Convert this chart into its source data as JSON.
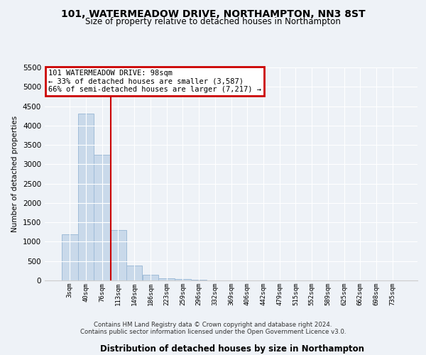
{
  "title1": "101, WATERMEADOW DRIVE, NORTHAMPTON, NN3 8ST",
  "title2": "Size of property relative to detached houses in Northampton",
  "xlabel": "Distribution of detached houses by size in Northampton",
  "ylabel": "Number of detached properties",
  "bar_labels": [
    "3sqm",
    "40sqm",
    "76sqm",
    "113sqm",
    "149sqm",
    "186sqm",
    "223sqm",
    "259sqm",
    "296sqm",
    "332sqm",
    "369sqm",
    "406sqm",
    "442sqm",
    "479sqm",
    "515sqm",
    "552sqm",
    "589sqm",
    "625sqm",
    "662sqm",
    "698sqm",
    "735sqm"
  ],
  "bar_values": [
    1200,
    4300,
    3250,
    1300,
    390,
    140,
    60,
    35,
    10,
    0,
    0,
    0,
    0,
    0,
    0,
    0,
    0,
    0,
    0,
    0,
    0
  ],
  "bar_color": "#c9d9ea",
  "bar_edge_color": "#a0bcd8",
  "ylim": [
    0,
    5500
  ],
  "yticks": [
    0,
    500,
    1000,
    1500,
    2000,
    2500,
    3000,
    3500,
    4000,
    4500,
    5000,
    5500
  ],
  "red_line_x": 2.55,
  "annotation_text": "101 WATERMEADOW DRIVE: 98sqm\n← 33% of detached houses are smaller (3,587)\n66% of semi-detached houses are larger (7,217) →",
  "annotation_box_color": "#ffffff",
  "annotation_edge_color": "#cc0000",
  "footer": "Contains HM Land Registry data © Crown copyright and database right 2024.\nContains public sector information licensed under the Open Government Licence v3.0.",
  "background_color": "#eef2f7",
  "plot_bg_color": "#eef2f7",
  "grid_color": "#ffffff",
  "title1_fontsize": 10,
  "title2_fontsize": 8.5
}
